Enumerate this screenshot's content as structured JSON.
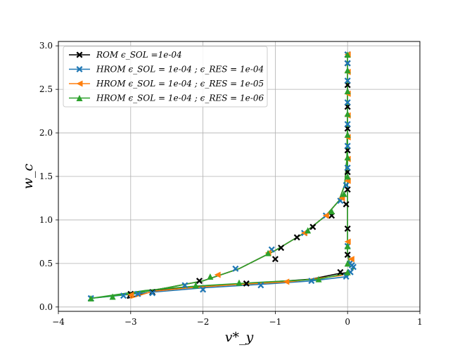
{
  "chart_data": {
    "type": "line",
    "title": "",
    "xlabel": "v*_y",
    "ylabel": "w_c",
    "xlim": [
      -4,
      1
    ],
    "ylim": [
      -0.05,
      3.05
    ],
    "xticks": [
      -4,
      -3,
      -2,
      -1,
      0,
      1
    ],
    "xtick_labels": [
      "−4",
      "−3",
      "−2",
      "−1",
      "0",
      "1"
    ],
    "yticks": [
      0.0,
      0.5,
      1.0,
      1.5,
      2.0,
      2.5,
      3.0
    ],
    "ytick_labels": [
      "0.0",
      "0.5",
      "1.0",
      "1.5",
      "2.0",
      "2.5",
      "3.0"
    ],
    "grid": true,
    "legend_position": "top-left",
    "series": [
      {
        "name": "ROM ϵ_SOL =1e-04",
        "color": "#000000",
        "marker": "X",
        "x": [
          -3.0,
          -2.7,
          -2.05,
          -1.4,
          -1.0,
          -0.92,
          -0.7,
          -0.48,
          -0.22,
          -0.02,
          0.0,
          0.0,
          0.0,
          0.0,
          0.0,
          0.0,
          0.0,
          0.0,
          0.0,
          0.0,
          -0.1
        ],
        "y": [
          0.15,
          0.17,
          0.3,
          0.27,
          0.55,
          0.68,
          0.8,
          0.92,
          1.05,
          1.18,
          1.35,
          1.55,
          1.8,
          2.05,
          2.3,
          2.55,
          2.8,
          2.9,
          0.9,
          0.6,
          0.4
        ]
      },
      {
        "name": "HROM ϵ_SOL = 1e-04 ; ϵ_RES = 1e-04",
        "color": "#1f77b4",
        "marker": "X",
        "x": [
          -3.55,
          -2.9,
          -2.25,
          -1.55,
          -1.05,
          -0.6,
          -0.3,
          -0.1,
          -0.02,
          0.0,
          0.0,
          0.0,
          0.0,
          0.0,
          0.0,
          0.0,
          0.0,
          0.03,
          0.06,
          0.08,
          0.04,
          -0.02,
          -0.5,
          -1.2,
          -2.0,
          -2.7,
          -3.1,
          -3.55
        ],
        "y": [
          0.1,
          0.15,
          0.25,
          0.44,
          0.66,
          0.85,
          1.05,
          1.22,
          1.4,
          1.6,
          1.85,
          2.1,
          2.35,
          2.6,
          2.8,
          2.9,
          0.7,
          0.5,
          0.48,
          0.46,
          0.4,
          0.35,
          0.3,
          0.25,
          0.2,
          0.16,
          0.13,
          0.1
        ]
      },
      {
        "name": "HROM ϵ_SOL = 1e-04 ; ϵ_RES = 1e-05",
        "color": "#ff7f0e",
        "marker": "<",
        "x": [
          -3.0,
          -1.8,
          -1.1,
          -0.6,
          -0.3,
          -0.08,
          0.0,
          0.0,
          0.0,
          0.0,
          0.0,
          0.0,
          0.0,
          0.0,
          0.05,
          -0.85
        ],
        "y": [
          0.14,
          0.37,
          0.62,
          0.85,
          1.05,
          1.25,
          1.45,
          1.7,
          1.95,
          2.2,
          2.45,
          2.7,
          2.9,
          0.75,
          0.55,
          0.29
        ]
      },
      {
        "name": "HROM ϵ_SOL = 1e-04 ; ϵ_RES = 1e-06",
        "color": "#2ca02c",
        "marker": "^",
        "x": [
          -3.55,
          -3.25,
          -2.1,
          -1.9,
          -1.1,
          -0.55,
          -0.22,
          -0.05,
          0.0,
          0.0,
          0.0,
          0.0,
          0.0,
          0.0,
          0.0,
          0.0,
          0.0,
          0.0,
          -0.4,
          -1.5
        ],
        "y": [
          0.1,
          0.12,
          0.25,
          0.35,
          0.62,
          0.88,
          1.1,
          1.3,
          1.5,
          1.72,
          1.98,
          2.22,
          2.48,
          2.72,
          2.9,
          0.7,
          0.5,
          0.4,
          0.32,
          0.28
        ]
      }
    ]
  }
}
